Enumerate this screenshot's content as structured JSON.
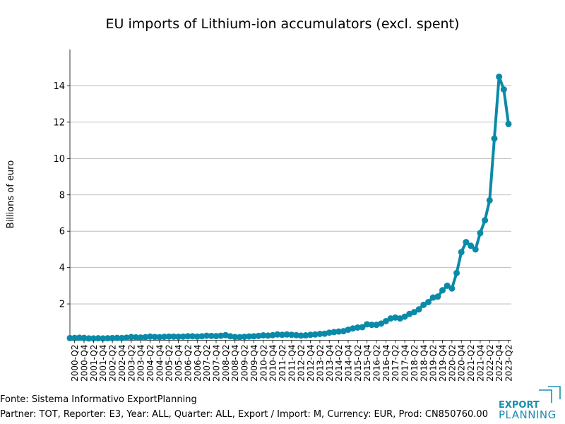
{
  "chart_data": {
    "type": "line",
    "title": "EU imports of Lithium-ion accumulators (excl. spent)",
    "y_label": "Billions of euro",
    "categories": [
      null,
      "2000-Q2",
      null,
      "2000-Q4",
      null,
      "2001-Q2",
      null,
      "2001-Q4",
      null,
      "2002-Q2",
      null,
      "2002-Q4",
      null,
      "2003-Q2",
      null,
      "2003-Q4",
      null,
      "2004-Q2",
      null,
      "2004-Q4",
      null,
      "2005-Q2",
      null,
      "2005-Q4",
      null,
      "2006-Q2",
      null,
      "2006-Q4",
      null,
      "2007-Q2",
      null,
      "2007-Q4",
      null,
      "2008-Q2",
      null,
      "2008-Q4",
      null,
      "2009-Q2",
      null,
      "2009-Q4",
      null,
      "2010-Q2",
      null,
      "2010-Q4",
      null,
      "2011-Q2",
      null,
      "2011-Q4",
      null,
      "2012-Q2",
      null,
      "2012-Q4",
      null,
      "2013-Q2",
      null,
      "2013-Q4",
      null,
      "2014-Q2",
      null,
      "2014-Q4",
      null,
      "2015-Q2",
      null,
      "2015-Q4",
      null,
      "2016-Q2",
      null,
      "2016-Q4",
      null,
      "2017-Q2",
      null,
      "2017-Q4",
      null,
      "2018-Q2",
      null,
      "2018-Q4",
      null,
      "2019-Q2",
      null,
      "2019-Q4",
      null,
      "2020-Q2",
      null,
      "2020-Q4",
      null,
      "2021-Q2",
      null,
      "2021-Q4",
      null,
      "2022-Q2",
      null,
      "2022-Q4",
      null,
      "2023-Q2"
    ],
    "series": [
      {
        "name": "EU imports",
        "color": "#0a8aa8",
        "values": [
          0.12,
          0.13,
          0.14,
          0.13,
          0.1,
          0.1,
          0.11,
          0.1,
          0.11,
          0.12,
          0.13,
          0.12,
          0.14,
          0.18,
          0.16,
          0.15,
          0.17,
          0.2,
          0.18,
          0.17,
          0.19,
          0.2,
          0.2,
          0.19,
          0.2,
          0.22,
          0.22,
          0.2,
          0.22,
          0.25,
          0.24,
          0.23,
          0.25,
          0.28,
          0.22,
          0.18,
          0.17,
          0.19,
          0.21,
          0.22,
          0.24,
          0.27,
          0.26,
          0.28,
          0.32,
          0.3,
          0.32,
          0.3,
          0.28,
          0.26,
          0.27,
          0.3,
          0.32,
          0.35,
          0.36,
          0.42,
          0.45,
          0.48,
          0.5,
          0.58,
          0.65,
          0.7,
          0.72,
          0.88,
          0.85,
          0.85,
          0.92,
          1.05,
          1.2,
          1.25,
          1.2,
          1.3,
          1.45,
          1.55,
          1.7,
          1.95,
          2.1,
          2.35,
          2.4,
          2.75,
          3.0,
          2.85,
          3.7,
          4.85,
          5.4,
          5.2,
          5.0,
          5.9,
          6.6,
          7.7,
          11.1,
          14.5,
          13.8,
          11.9
        ]
      }
    ],
    "ylim": [
      0,
      16
    ],
    "yticks": [
      2,
      4,
      6,
      8,
      10,
      12,
      14
    ],
    "grid": true
  },
  "footer": {
    "source": "Fonte: Sistema Informativo ExportPlanning",
    "details": "Partner: TOT, Reporter: E3, Year: ALL, Quarter: ALL, Export / Import: M, Currency: EUR, Prod: CN850760.00"
  },
  "logo": {
    "line1": "EXPORT",
    "line2": "PLANNING"
  }
}
